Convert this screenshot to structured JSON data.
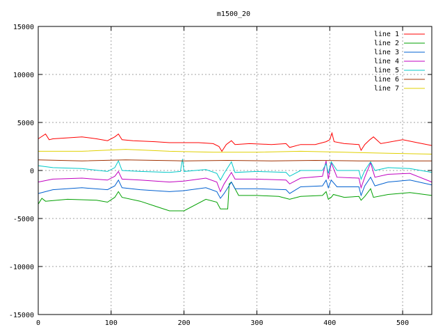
{
  "chart_data": {
    "type": "line",
    "title": "m1500_20",
    "xlabel": "",
    "ylabel": "",
    "xlim": [
      0,
      540
    ],
    "ylim": [
      -15000,
      15000
    ],
    "x_ticks": [
      0,
      100,
      200,
      300,
      400,
      500
    ],
    "y_ticks": [
      -15000,
      -10000,
      -5000,
      0,
      5000,
      10000,
      15000
    ],
    "grid": true,
    "legend_position": "top-right",
    "series": [
      {
        "name": "line 1",
        "color": "#ff0000",
        "x": [
          0,
          10,
          15,
          20,
          40,
          60,
          80,
          95,
          105,
          110,
          115,
          130,
          160,
          180,
          200,
          220,
          240,
          248,
          252,
          258,
          265,
          270,
          290,
          320,
          340,
          345,
          360,
          380,
          395,
          400,
          403,
          406,
          420,
          440,
          443,
          448,
          455,
          460,
          470,
          500,
          520,
          540
        ],
        "y": [
          3300,
          3800,
          3200,
          3300,
          3400,
          3500,
          3300,
          3100,
          3500,
          3800,
          3200,
          3100,
          3000,
          2900,
          2900,
          2900,
          2800,
          2500,
          2000,
          2700,
          3100,
          2700,
          2800,
          2700,
          2800,
          2400,
          2700,
          2700,
          3000,
          3200,
          3900,
          3000,
          2800,
          2700,
          2100,
          2700,
          3200,
          3500,
          2800,
          3200,
          2900,
          2600
        ]
      },
      {
        "name": "line 2",
        "color": "#00a000",
        "x": [
          0,
          5,
          10,
          40,
          80,
          95,
          105,
          110,
          115,
          140,
          160,
          180,
          200,
          230,
          245,
          250,
          260,
          262,
          265,
          268,
          275,
          300,
          330,
          345,
          360,
          390,
          395,
          398,
          402,
          405,
          420,
          440,
          443,
          448,
          456,
          460,
          480,
          510,
          540
        ],
        "y": [
          -3500,
          -2900,
          -3200,
          -3000,
          -3100,
          -3300,
          -2800,
          -2200,
          -2800,
          -3200,
          -3700,
          -4200,
          -4200,
          -3000,
          -3300,
          -4000,
          -4000,
          -1400,
          -1200,
          -1600,
          -2600,
          -2600,
          -2700,
          -3000,
          -2700,
          -2600,
          -2200,
          -3000,
          -2800,
          -2500,
          -2800,
          -2700,
          -3100,
          -2700,
          -1900,
          -2800,
          -2500,
          -2300,
          -2600
        ]
      },
      {
        "name": "line 3",
        "color": "#0060d0",
        "x": [
          0,
          20,
          60,
          95,
          105,
          110,
          115,
          140,
          180,
          200,
          230,
          245,
          250,
          255,
          265,
          270,
          300,
          340,
          345,
          360,
          390,
          395,
          398,
          402,
          410,
          440,
          443,
          448,
          456,
          462,
          480,
          510,
          540
        ],
        "y": [
          -2400,
          -2000,
          -1800,
          -2000,
          -1600,
          -1000,
          -1800,
          -2000,
          -2200,
          -2100,
          -1800,
          -2200,
          -2900,
          -2400,
          -1200,
          -1900,
          -1900,
          -2000,
          -2400,
          -1700,
          -1600,
          -1000,
          -1800,
          -1000,
          -1700,
          -1700,
          -2600,
          -1600,
          -700,
          -1600,
          -1200,
          -1000,
          -1500
        ]
      },
      {
        "name": "line 4",
        "color": "#c000c0",
        "x": [
          0,
          20,
          60,
          95,
          105,
          110,
          115,
          140,
          180,
          200,
          230,
          245,
          250,
          255,
          265,
          270,
          300,
          340,
          345,
          360,
          390,
          395,
          398,
          402,
          410,
          440,
          443,
          448,
          456,
          462,
          480,
          510,
          540
        ],
        "y": [
          -1200,
          -900,
          -800,
          -1000,
          -600,
          -100,
          -900,
          -1000,
          -1200,
          -1100,
          -800,
          -1200,
          -2200,
          -1400,
          -200,
          -900,
          -900,
          -1000,
          -1400,
          -800,
          -600,
          1000,
          -900,
          800,
          -700,
          -800,
          -1800,
          -700,
          800,
          -700,
          -400,
          -300,
          -1200
        ]
      },
      {
        "name": "line 5",
        "color": "#00c8c8",
        "x": [
          0,
          20,
          60,
          95,
          105,
          110,
          115,
          140,
          180,
          195,
          198,
          200,
          230,
          245,
          250,
          255,
          265,
          270,
          300,
          340,
          345,
          360,
          390,
          395,
          398,
          402,
          410,
          440,
          443,
          448,
          456,
          462,
          480,
          510,
          540
        ],
        "y": [
          500,
          300,
          200,
          -100,
          300,
          1000,
          0,
          -100,
          -200,
          -100,
          1200,
          -100,
          100,
          -300,
          -1000,
          -300,
          900,
          -200,
          -100,
          -200,
          -600,
          0,
          0,
          700,
          -300,
          900,
          0,
          0,
          -900,
          0,
          900,
          0,
          300,
          200,
          -200
        ]
      },
      {
        "name": "line 6",
        "color": "#a03000",
        "x": [
          0,
          60,
          120,
          200,
          260,
          320,
          380,
          440,
          500,
          540
        ],
        "y": [
          1100,
          1000,
          1100,
          1000,
          1050,
          1000,
          1050,
          1000,
          1000,
          1000
        ]
      },
      {
        "name": "line 7",
        "color": "#e0d000",
        "x": [
          0,
          60,
          120,
          180,
          240,
          300,
          360,
          420,
          480,
          540
        ],
        "y": [
          2000,
          2000,
          2200,
          2000,
          1900,
          1900,
          2000,
          1900,
          1800,
          1700
        ]
      }
    ]
  }
}
